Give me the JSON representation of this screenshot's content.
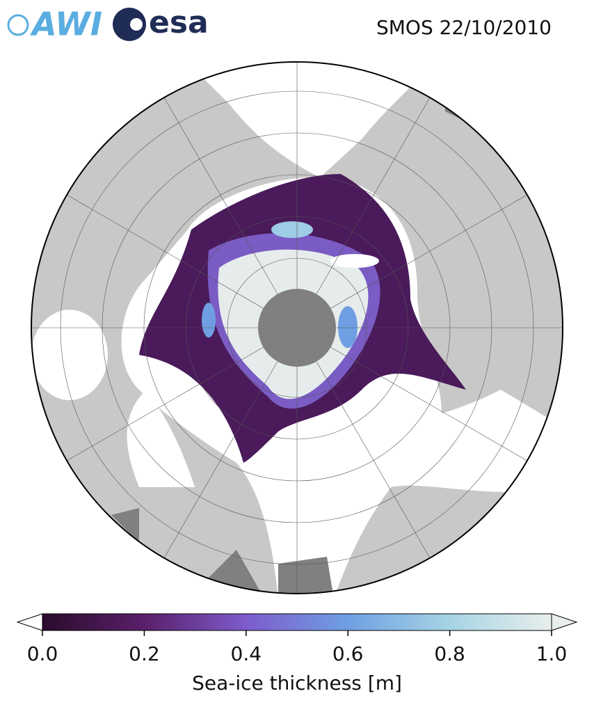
{
  "header": {
    "logo_left": "AWI",
    "logo_right": "esa",
    "title": "SMOS 22/10/2010"
  },
  "colorbar": {
    "label": "Sea-ice thickness [m]",
    "lim": [
      0,
      1
    ],
    "ticks": [
      {
        "value": 0,
        "label": "0.0"
      },
      {
        "value": 0.2,
        "label": "0.2"
      },
      {
        "value": 0.4,
        "label": "0.4"
      },
      {
        "value": 0.6,
        "label": "0.6"
      },
      {
        "value": 0.8,
        "label": "0.8"
      },
      {
        "value": 1,
        "label": "1.0"
      }
    ],
    "colormap": [
      "#2a0c2c",
      "#5a1f6a",
      "#7d5ccc",
      "#6f9fe2",
      "#a6d4e4",
      "#e8eeec"
    ]
  }
}
